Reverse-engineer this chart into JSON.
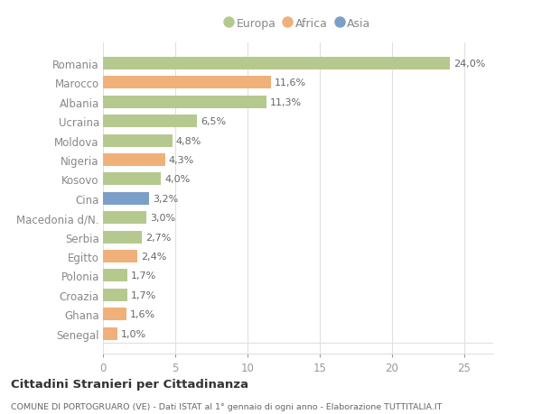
{
  "categories": [
    "Romania",
    "Marocco",
    "Albania",
    "Ucraina",
    "Moldova",
    "Nigeria",
    "Kosovo",
    "Cina",
    "Macedonia d/N.",
    "Serbia",
    "Egitto",
    "Polonia",
    "Croazia",
    "Ghana",
    "Senegal"
  ],
  "values": [
    24.0,
    11.6,
    11.3,
    6.5,
    4.8,
    4.3,
    4.0,
    3.2,
    3.0,
    2.7,
    2.4,
    1.7,
    1.7,
    1.6,
    1.0
  ],
  "labels": [
    "24,0%",
    "11,6%",
    "11,3%",
    "6,5%",
    "4,8%",
    "4,3%",
    "4,0%",
    "3,2%",
    "3,0%",
    "2,7%",
    "2,4%",
    "1,7%",
    "1,7%",
    "1,6%",
    "1,0%"
  ],
  "colors": [
    "#b5c98e",
    "#f0b07a",
    "#b5c98e",
    "#b5c98e",
    "#b5c98e",
    "#f0b07a",
    "#b5c98e",
    "#7b9fc8",
    "#b5c98e",
    "#b5c98e",
    "#f0b07a",
    "#b5c98e",
    "#b5c98e",
    "#f0b07a",
    "#f0b07a"
  ],
  "legend_labels": [
    "Europa",
    "Africa",
    "Asia"
  ],
  "legend_colors": [
    "#b5c98e",
    "#f0b07a",
    "#7b9fc8"
  ],
  "title": "Cittadini Stranieri per Cittadinanza",
  "subtitle": "COMUNE DI PORTOGRUARO (VE) - Dati ISTAT al 1° gennaio di ogni anno - Elaborazione TUTTITALIA.IT",
  "xlim": [
    0,
    27
  ],
  "xticks": [
    0,
    5,
    10,
    15,
    20,
    25
  ],
  "background_color": "#ffffff",
  "plot_bg_color": "#f5f5f5",
  "grid_color": "#e0e0e0",
  "bar_height": 0.65,
  "label_color": "#666666",
  "ytick_color": "#888888"
}
